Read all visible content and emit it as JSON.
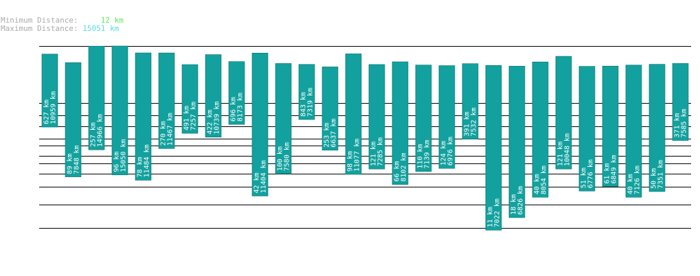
{
  "stats": {
    "min_label": "Minimum Distance:",
    "min_value": "12 km",
    "max_label": "Maximum Distance:",
    "max_value": "15051 km"
  },
  "colors": {
    "bar": "#12a19e",
    "bar_edge": "#0a6f6c",
    "grid": "#000000"
  },
  "chart_data": {
    "type": "bar",
    "bars": [
      {
        "min": 627,
        "max": 10959
      },
      {
        "min": 89,
        "max": 7848
      },
      {
        "min": 257,
        "max": 14966
      },
      {
        "min": 96,
        "max": 15050
      },
      {
        "min": 78,
        "max": 11484
      },
      {
        "min": 270,
        "max": 11467
      },
      {
        "min": 491,
        "max": 7257
      },
      {
        "min": 422,
        "max": 10739
      },
      {
        "min": 696,
        "max": 8173
      },
      {
        "min": 42,
        "max": 11404
      },
      {
        "min": 100,
        "max": 7580
      },
      {
        "min": 843,
        "max": 7319
      },
      {
        "min": 253,
        "max": 6637
      },
      {
        "min": 98,
        "max": 11077
      },
      {
        "min": 121,
        "max": 7285
      },
      {
        "min": 66,
        "max": 8102
      },
      {
        "min": 110,
        "max": 7139
      },
      {
        "min": 124,
        "max": 6976
      },
      {
        "min": 391,
        "max": 7532
      },
      {
        "min": 11,
        "max": 7022
      },
      {
        "min": 18,
        "max": 6826
      },
      {
        "min": 40,
        "max": 8054
      },
      {
        "min": 121,
        "max": 10048
      },
      {
        "min": 51,
        "max": 6776
      },
      {
        "min": 61,
        "max": 6849
      },
      {
        "min": 40,
        "max": 7126
      },
      {
        "min": 50,
        "max": 7351
      },
      {
        "min": 371,
        "max": 7585
      }
    ],
    "gridlines": [
      15051,
      1600,
      1000,
      640,
      400,
      300,
      200,
      150,
      100,
      60,
      30,
      12
    ]
  }
}
